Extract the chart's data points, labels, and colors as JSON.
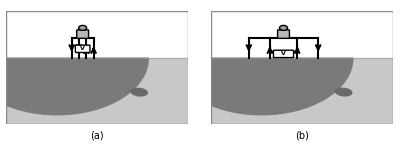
{
  "fig_width": 4.01,
  "fig_height": 1.51,
  "dpi": 100,
  "bg_color": "#ffffff",
  "ground_color": "#c8c8c8",
  "semicircle_color": "#7a7a7a",
  "rock_color": "#6a6a6a",
  "label_a": "(a)",
  "label_b": "(b)",
  "instrument_color": "#b0b0b0",
  "wire_color": "#000000"
}
